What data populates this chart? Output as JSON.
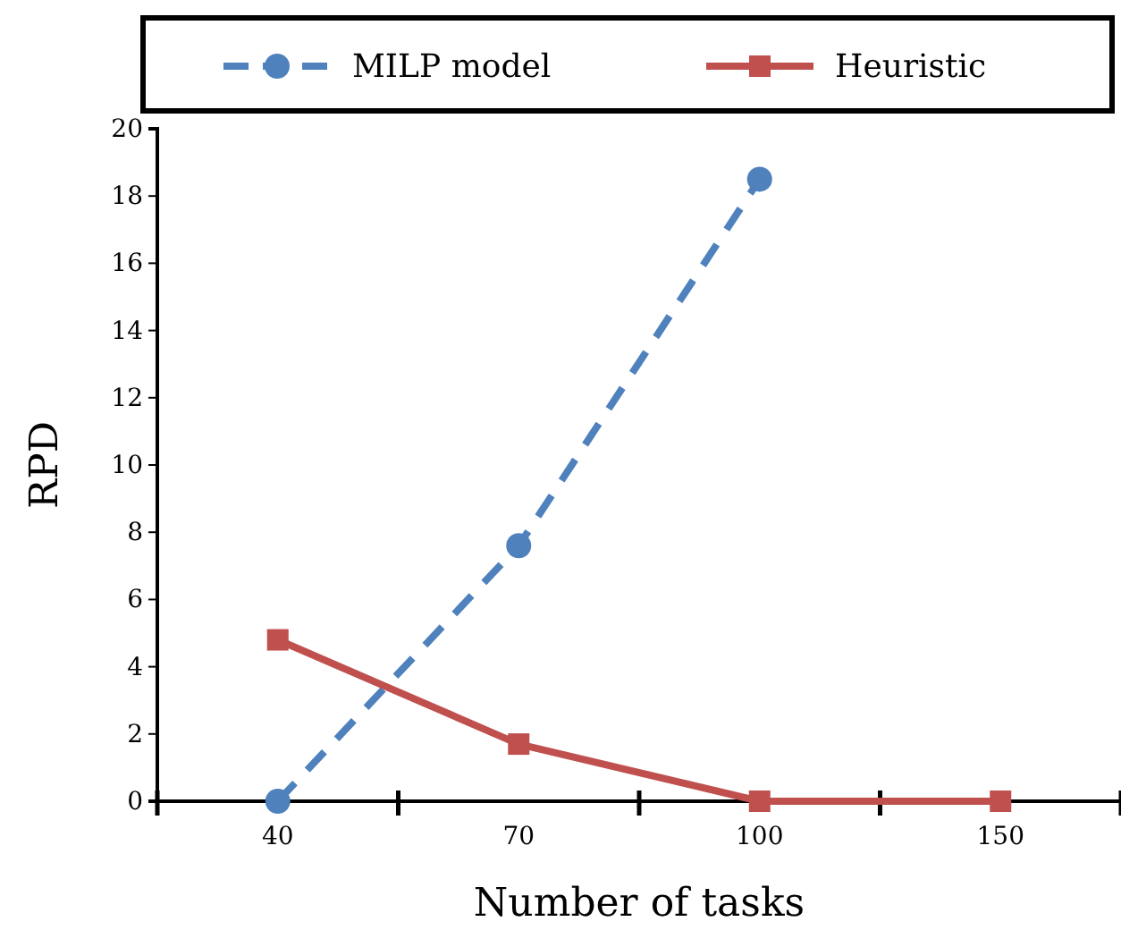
{
  "chart_data": {
    "type": "line",
    "xlabel": "Number of tasks",
    "ylabel": "RPD",
    "categories": [
      "40",
      "70",
      "100",
      "150"
    ],
    "series": [
      {
        "name": "MILP model",
        "color": "#4f81bd",
        "values": [
          0,
          7.6,
          18.5,
          null
        ],
        "marker": "circle",
        "line_style": "dashed"
      },
      {
        "name": "Heuristic",
        "color": "#c0504d",
        "values": [
          4.8,
          1.7,
          0,
          0
        ],
        "marker": "square",
        "line_style": "solid"
      }
    ],
    "ylim": [
      0,
      20
    ],
    "yticks": [
      0,
      2,
      4,
      6,
      8,
      10,
      12,
      14,
      16,
      18,
      20
    ],
    "grid": false,
    "legend": "top"
  }
}
